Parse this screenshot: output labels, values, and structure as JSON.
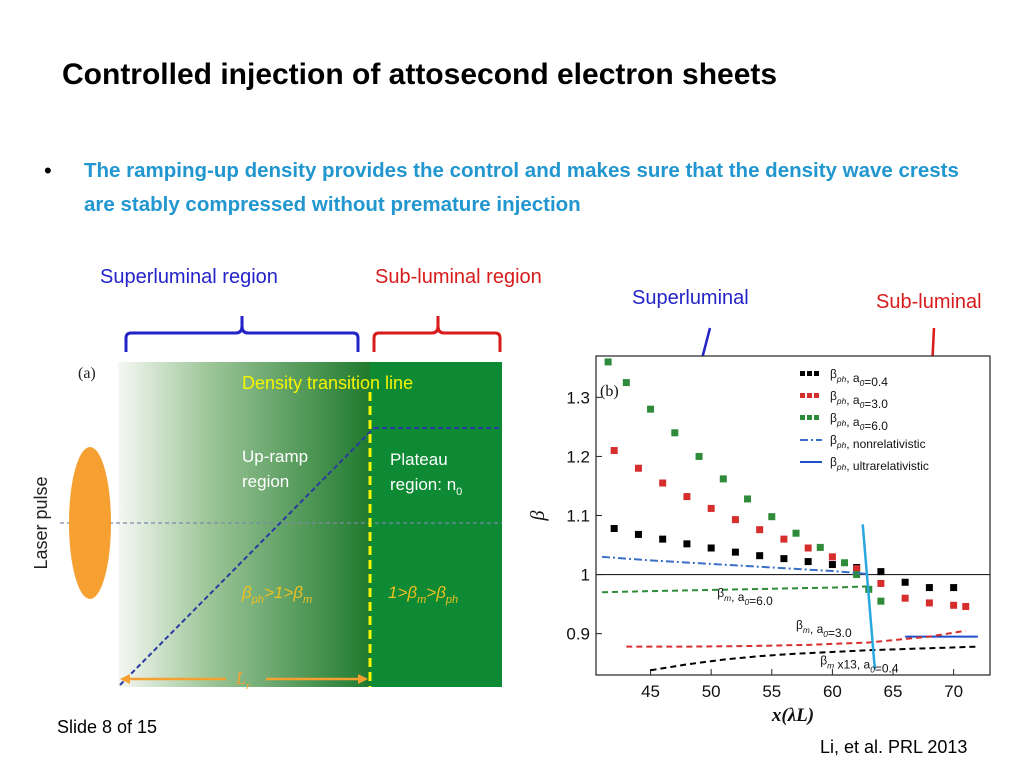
{
  "slide": {
    "title": "Controlled injection of attosecond electron sheets",
    "bullet": "The ramping-up density provides the control and makes sure that the density wave crests are stably compressed without premature injection",
    "labels": {
      "superluminal_region": "Superluminal region",
      "subluminal_region": "Sub-luminal region",
      "superluminal": "Superluminal",
      "subluminal": "Sub-luminal"
    },
    "slide_number": "Slide 8 of 15",
    "citation": "Li, et al. PRL 2013"
  },
  "figure_a": {
    "panel_label": "(a)",
    "laser_label": "Laser pulse",
    "transition_label": "Density transition line",
    "upramp_line1": "Up-ramp",
    "upramp_line2": "region",
    "plateau_line1": "Plateau",
    "plateau_line2": "region: n",
    "plateau_sub": "0",
    "cond_left": "β",
    "cond_left_sub1": "ph",
    "cond_left_mid": ">1>β",
    "cond_left_sub2": "m",
    "cond_right": "1>β",
    "cond_right_sub1": "m",
    "cond_right_mid": ">β",
    "cond_right_sub2": "ph",
    "length_label": "L",
    "length_sub": "r",
    "colors": {
      "green_dark": "#1f7a2e",
      "plateau": "#0e8a34",
      "transition": "#f5f500",
      "cond": "#f0c020",
      "laser": "#f5a030",
      "ramp": "#2a3aa0"
    }
  },
  "chart_data": {
    "type": "scatter",
    "panel_label": "(b)",
    "xlabel": "x(λ_L)",
    "ylabel": "β",
    "xlim": [
      40.5,
      73
    ],
    "ylim": [
      0.83,
      1.37
    ],
    "xticks": [
      45,
      50,
      55,
      60,
      65,
      70
    ],
    "yticks": [
      0.9,
      1,
      1.1,
      1.2,
      1.3
    ],
    "ytick_labels": [
      "0.9",
      "1",
      "1.1",
      "1.2",
      "1.3"
    ],
    "reference_line": 1,
    "series": [
      {
        "name": "β_ph, a_0=0.4",
        "color": "#000000",
        "style": "markers",
        "x": [
          42,
          44,
          46,
          48,
          50,
          52,
          54,
          56,
          58,
          60,
          62,
          64,
          66,
          68,
          70
        ],
        "y": [
          1.078,
          1.068,
          1.06,
          1.052,
          1.045,
          1.038,
          1.032,
          1.027,
          1.022,
          1.017,
          1.012,
          1.005,
          0.987,
          0.978,
          0.978
        ]
      },
      {
        "name": "β_ph, a_0=3.0",
        "color": "#d62d2d",
        "style": "markers",
        "x": [
          42,
          44,
          46,
          48,
          50,
          52,
          54,
          56,
          58,
          60,
          62,
          64,
          66,
          68,
          70,
          71
        ],
        "y": [
          1.21,
          1.18,
          1.155,
          1.132,
          1.112,
          1.093,
          1.076,
          1.06,
          1.045,
          1.03,
          1.01,
          0.985,
          0.96,
          0.952,
          0.948,
          0.946
        ]
      },
      {
        "name": "β_ph, a_0=6.0",
        "color": "#2e8b3a",
        "style": "markers",
        "x": [
          41.5,
          43,
          45,
          47,
          49,
          51,
          53,
          55,
          57,
          59,
          61,
          62,
          63,
          64
        ],
        "y": [
          1.36,
          1.325,
          1.28,
          1.24,
          1.2,
          1.162,
          1.128,
          1.098,
          1.07,
          1.046,
          1.02,
          1.0,
          0.975,
          0.955
        ]
      },
      {
        "name": "β_ph, nonrelativistic",
        "color": "#3a6fc8",
        "style": "dashdot",
        "x": [
          41,
          45,
          50,
          55,
          60,
          63
        ],
        "y": [
          1.03,
          1.024,
          1.018,
          1.012,
          1.006,
          1.001
        ]
      },
      {
        "name": "β_ph, ultrarelativistic",
        "color": "#1f4fc8",
        "style": "solid",
        "x": [
          66,
          72
        ],
        "y": [
          0.895,
          0.895
        ]
      },
      {
        "name": "β_m, a_0=6.0",
        "color": "#2e8b3a",
        "style": "dashed",
        "x": [
          41,
          45,
          50,
          55,
          60,
          63
        ],
        "y": [
          0.97,
          0.972,
          0.974,
          0.976,
          0.978,
          0.98
        ]
      },
      {
        "name": "β_m, a_0=3.0",
        "color": "#d62d2d",
        "style": "dashed",
        "x": [
          43,
          48,
          53,
          58,
          63,
          68,
          71
        ],
        "y": [
          0.878,
          0.878,
          0.879,
          0.881,
          0.885,
          0.895,
          0.905
        ]
      },
      {
        "name": "β_m x13, a_0=0.4",
        "color": "#000000",
        "style": "dashed",
        "x": [
          45,
          48,
          51,
          54,
          57,
          60,
          63,
          66,
          69,
          72
        ],
        "y": [
          0.838,
          0.848,
          0.856,
          0.862,
          0.866,
          0.869,
          0.872,
          0.874,
          0.876,
          0.878
        ]
      },
      {
        "name": "density transition",
        "color": "#29a8e0",
        "style": "solid",
        "x": [
          62.5,
          63.5
        ],
        "y": [
          1.085,
          0.84
        ]
      }
    ],
    "legend": {
      "placement": "top-right",
      "entries": [
        {
          "label": "β_ph, a_0=0.4",
          "color": "#000000",
          "style": "markers"
        },
        {
          "label": "β_ph, a_0=3.0",
          "color": "#d62d2d",
          "style": "markers"
        },
        {
          "label": "β_ph, a_0=6.0",
          "color": "#2e8b3a",
          "style": "markers"
        },
        {
          "label": "β_ph, nonrelativistic",
          "color": "#3a6fc8",
          "style": "dashdot"
        },
        {
          "label": "β_ph, ultrarelativistic",
          "color": "#1f4fc8",
          "style": "solid"
        }
      ]
    },
    "annotations": [
      {
        "text": "β_m, a_0=6.0",
        "x": 50.5,
        "y": 0.962
      },
      {
        "text": "β_m, a_0=3.0",
        "x": 57,
        "y": 0.908
      },
      {
        "text": "β_m x13, a_0=0.4",
        "x": 59,
        "y": 0.848
      }
    ]
  }
}
